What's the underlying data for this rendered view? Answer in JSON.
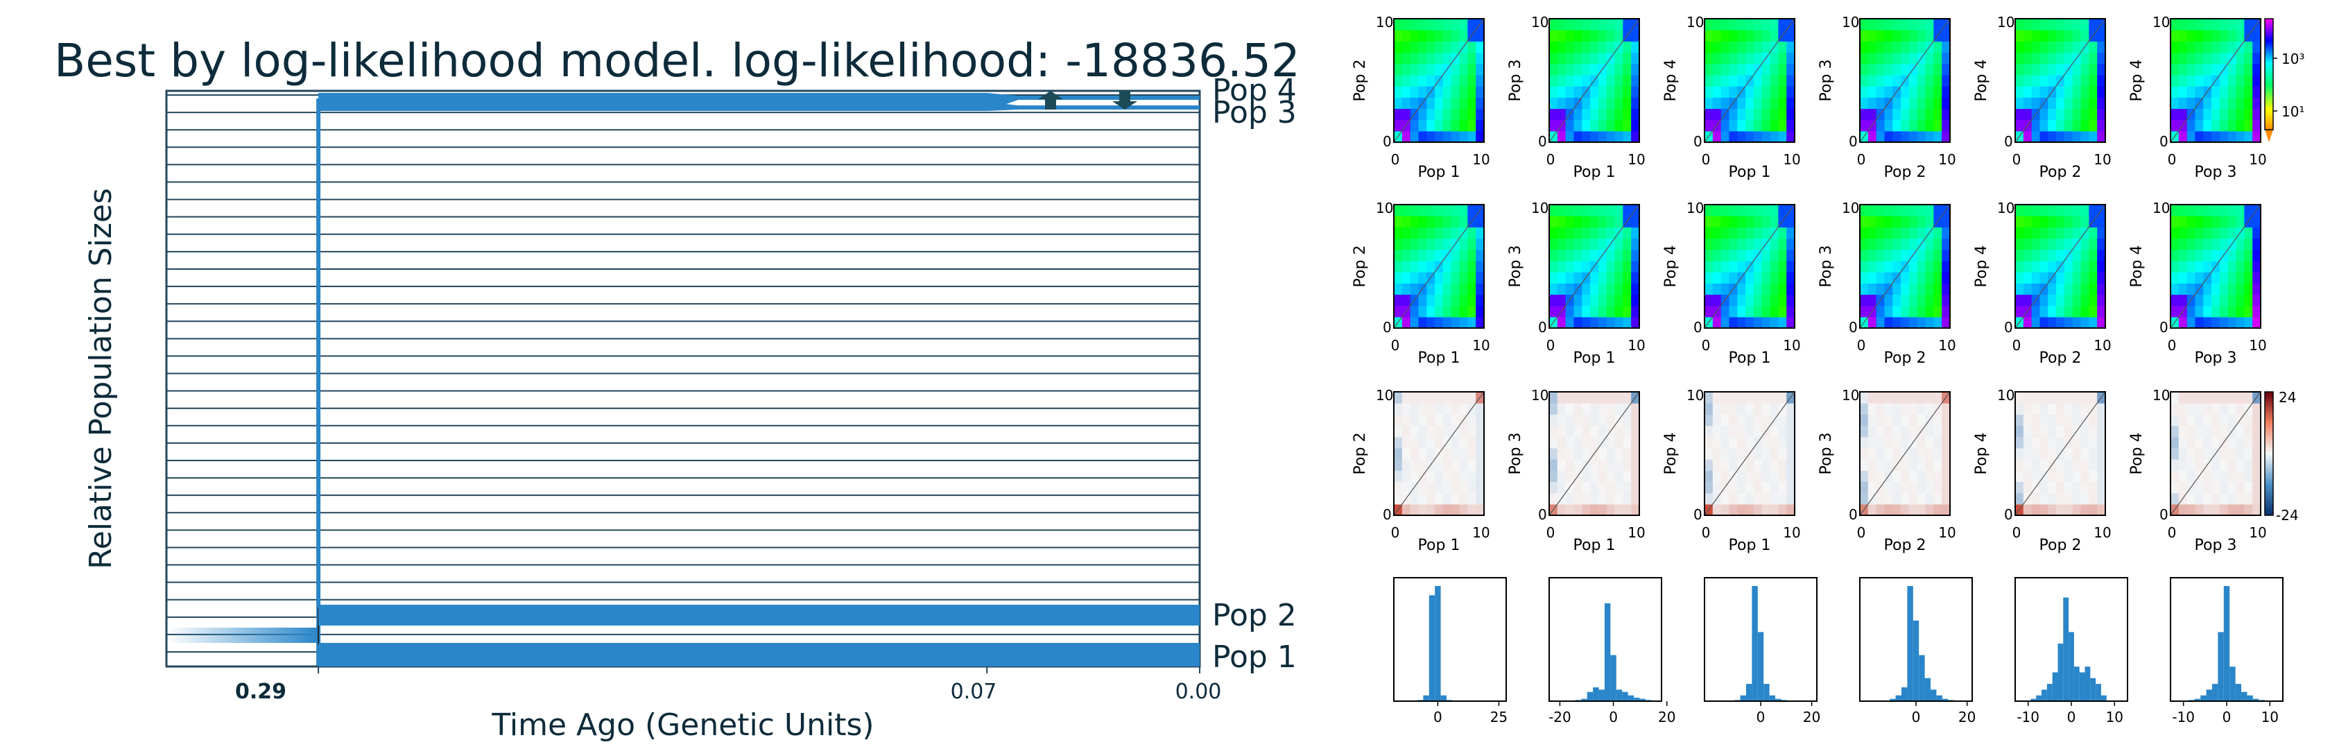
{
  "title": "Best by log-likelihood model. log-likelihood: -18836.52",
  "colors": {
    "title": "#0d2b3a",
    "pop_fill": "#2a86c9",
    "frame": "#24475c",
    "arrow": "#1c4a57",
    "diag": "#555555"
  },
  "chart_data": [
    {
      "type": "area",
      "title": "Best by log-likelihood model. log-likelihood: -18836.52",
      "xlabel": "Time Ago (Genetic Units)",
      "ylabel": "Relative Population Sizes",
      "x_ticks": [
        {
          "value": 0.29,
          "label": "0.29",
          "bold": true
        },
        {
          "value": 0.07,
          "label": "0.07",
          "bold": false
        },
        {
          "value": 0.0,
          "label": "0.00",
          "bold": false
        }
      ],
      "xlim": [
        0.34,
        0.0
      ],
      "populations": [
        {
          "name": "Pop 4",
          "start_time": 0.29
        },
        {
          "name": "Pop 3",
          "start_time": 0.07
        },
        {
          "name": "Pop 2",
          "start_time": 0.29
        },
        {
          "name": "Pop 1",
          "start_time": 0.29
        }
      ],
      "ancestral_split_time": 0.29,
      "migration_arrows": [
        "up",
        "down"
      ]
    },
    {
      "type": "heatmap",
      "description_rows": [
        "data",
        "model",
        "residuals"
      ],
      "panels": [
        {
          "xlabel": "Pop 1",
          "ylabel": "Pop 2"
        },
        {
          "xlabel": "Pop 1",
          "ylabel": "Pop 3"
        },
        {
          "xlabel": "Pop 1",
          "ylabel": "Pop 4"
        },
        {
          "xlabel": "Pop 2",
          "ylabel": "Pop 3"
        },
        {
          "xlabel": "Pop 2",
          "ylabel": "Pop 4"
        },
        {
          "xlabel": "Pop 3",
          "ylabel": "Pop 4"
        }
      ],
      "axis_ticks": [
        "0",
        "10"
      ],
      "colorbar_counts": {
        "scale": "log",
        "ticks": [
          "10³",
          "10¹"
        ]
      },
      "colorbar_residuals": {
        "ticks": [
          "24",
          "-24"
        ],
        "range": [
          -24,
          24
        ]
      }
    },
    {
      "type": "bar",
      "description": "Residual histograms",
      "panels": [
        {
          "x_ticks": [
            "0",
            "25"
          ],
          "xlim": [
            -18,
            28
          ],
          "values": [
            0.002,
            0.004,
            0.006,
            0.01,
            0.05,
            0.92,
            1.0,
            0.05,
            0.01,
            0.004,
            0.003,
            0.002,
            0.001
          ]
        },
        {
          "x_ticks": [
            "-20",
            "0",
            "20"
          ],
          "xlim": [
            -24,
            18
          ],
          "values": [
            0.01,
            0.02,
            0.08,
            0.12,
            0.1,
            0.85,
            0.4,
            0.1,
            0.08,
            0.05,
            0.03,
            0.02,
            0.01
          ]
        },
        {
          "x_ticks": [
            "0",
            "20"
          ],
          "xlim": [
            -22,
            22
          ],
          "values": [
            0.004,
            0.006,
            0.01,
            0.05,
            0.15,
            1.0,
            0.6,
            0.15,
            0.05,
            0.02,
            0.01,
            0.004,
            0.002
          ]
        },
        {
          "x_ticks": [
            "0",
            "20"
          ],
          "xlim": [
            -22,
            22
          ],
          "values": [
            0.004,
            0.006,
            0.02,
            0.05,
            0.12,
            1.0,
            0.7,
            0.4,
            0.2,
            0.1,
            0.05,
            0.02,
            0.01
          ]
        },
        {
          "x_ticks": [
            "-10",
            "0",
            "10"
          ],
          "xlim": [
            -13,
            13
          ],
          "values": [
            0.02,
            0.05,
            0.1,
            0.15,
            0.25,
            0.5,
            0.9,
            0.6,
            0.3,
            0.25,
            0.3,
            0.2,
            0.15,
            0.05
          ]
        },
        {
          "x_ticks": [
            "-10",
            "0",
            "10"
          ],
          "xlim": [
            -13,
            13
          ],
          "values": [
            0.01,
            0.02,
            0.05,
            0.1,
            0.15,
            0.6,
            1.0,
            0.3,
            0.15,
            0.08,
            0.05,
            0.02,
            0.01
          ]
        }
      ]
    }
  ]
}
